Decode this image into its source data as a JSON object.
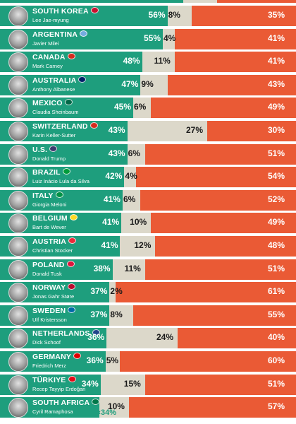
{
  "colors": {
    "approve": "#1e9e7d",
    "neutral": "#dcd8ca",
    "disapprove": "#ea5a35"
  },
  "chart_data": {
    "type": "bar",
    "orientation": "horizontal",
    "stacked": true,
    "series": [
      {
        "key": "approve",
        "color": "#1e9e7d"
      },
      {
        "key": "neutral",
        "color": "#dcd8ca"
      },
      {
        "key": "disapprove",
        "color": "#ea5a35"
      }
    ],
    "rows": [
      {
        "country": "SOUTH KOREA",
        "leader": "Lee Jae-myung",
        "approve": 56,
        "neutral": 8,
        "disapprove": 35,
        "flag": "#c8102e",
        "approve_label": "56%",
        "neutral_label": "8%",
        "disapprove_label": "35%"
      },
      {
        "country": "ARGENTINA",
        "leader": "Javier Milei",
        "approve": 55,
        "neutral": 4,
        "disapprove": 41,
        "flag": "#74acdf",
        "approve_label": "55%",
        "neutral_label": "4%",
        "disapprove_label": "41%"
      },
      {
        "country": "CANADA",
        "leader": "Mark Carney",
        "approve": 48,
        "neutral": 11,
        "disapprove": 41,
        "flag": "#d52b1e",
        "approve_label": "48%",
        "neutral_label": "11%",
        "disapprove_label": "41%"
      },
      {
        "country": "AUSTRALIA",
        "leader": "Anthony Albanese",
        "approve": 47,
        "neutral": 9,
        "disapprove": 43,
        "flag": "#012169",
        "approve_label": "47%",
        "neutral_label": "9%",
        "disapprove_label": "43%"
      },
      {
        "country": "MEXICO",
        "leader": "Claudia Sheinbaum",
        "approve": 45,
        "neutral": 6,
        "disapprove": 49,
        "flag": "#006847",
        "approve_label": "45%",
        "neutral_label": "6%",
        "disapprove_label": "49%"
      },
      {
        "country": "SWITZERLAND",
        "leader": "Karin Keller-Sutter",
        "approve": 43,
        "neutral": 27,
        "disapprove": 30,
        "flag": "#d52b1e",
        "approve_label": "43%",
        "neutral_label": "27%",
        "disapprove_label": "30%"
      },
      {
        "country": "U.S.",
        "leader": "Donald Trump",
        "approve": 43,
        "neutral": 6,
        "disapprove": 51,
        "flag": "#3c3b6e",
        "approve_label": "43%",
        "neutral_label": "6%",
        "disapprove_label": "51%"
      },
      {
        "country": "BRAZIL",
        "leader": "Luiz Inácio Lula da Silva",
        "approve": 42,
        "neutral": 4,
        "disapprove": 54,
        "flag": "#009c3b",
        "approve_label": "42%",
        "neutral_label": "4%",
        "disapprove_label": "54%"
      },
      {
        "country": "ITALY",
        "leader": "Giorgia Meloni",
        "approve": 41,
        "neutral": 6,
        "disapprove": 52,
        "flag": "#009246",
        "approve_label": "41%",
        "neutral_label": "6%",
        "disapprove_label": "52%"
      },
      {
        "country": "BELGIUM",
        "leader": "Bart de Wever",
        "approve": 41,
        "neutral": 10,
        "disapprove": 49,
        "flag": "#fdda24",
        "approve_label": "41%",
        "neutral_label": "10%",
        "disapprove_label": "49%"
      },
      {
        "country": "AUSTRIA",
        "leader": "Christian Stocker",
        "approve": 41,
        "neutral": 12,
        "disapprove": 48,
        "flag": "#ed2939",
        "approve_label": "41%",
        "neutral_label": "12%",
        "disapprove_label": "48%"
      },
      {
        "country": "POLAND",
        "leader": "Donald Tusk",
        "approve": 38,
        "neutral": 11,
        "disapprove": 51,
        "flag": "#dc143c",
        "approve_label": "38%",
        "neutral_label": "11%",
        "disapprove_label": "51%"
      },
      {
        "country": "NORWAY",
        "leader": "Jonas Gahr Støre",
        "approve": 37,
        "neutral": 2,
        "disapprove": 61,
        "flag": "#ba0c2f",
        "approve_label": "37%",
        "neutral_label": "2%",
        "disapprove_label": "61%"
      },
      {
        "country": "SWEDEN",
        "leader": "Ulf Kristersson",
        "approve": 37,
        "neutral": 8,
        "disapprove": 55,
        "flag": "#006aa7",
        "approve_label": "37%",
        "neutral_label": "8%",
        "disapprove_label": "55%"
      },
      {
        "country": "NETHERLANDS",
        "leader": "Dick Schoof",
        "approve": 36,
        "neutral": 24,
        "disapprove": 40,
        "flag": "#21468b",
        "approve_label": "36%",
        "neutral_label": "24%",
        "disapprove_label": "40%"
      },
      {
        "country": "GERMANY",
        "leader": "Friedrich Merz",
        "approve": 36,
        "neutral": 5,
        "disapprove": 60,
        "flag": "#dd0000",
        "approve_label": "36%",
        "neutral_label": "5%",
        "disapprove_label": "60%"
      },
      {
        "country": "TÜRKIYE",
        "leader": "Recep Tayyip Erdoğan",
        "approve": 34,
        "neutral": 15,
        "disapprove": 51,
        "flag": "#e30a17",
        "approve_label": "34%",
        "neutral_label": "15%",
        "disapprove_label": "51%"
      },
      {
        "country": "SOUTH AFRICA",
        "leader": "Cyril Ramaphosa",
        "approve": 34,
        "neutral": 10,
        "disapprove": 57,
        "flag": "#007749",
        "approve_label": "",
        "extra_label": "34%",
        "neutral_label": "10%",
        "disapprove_label": "57%"
      }
    ]
  }
}
